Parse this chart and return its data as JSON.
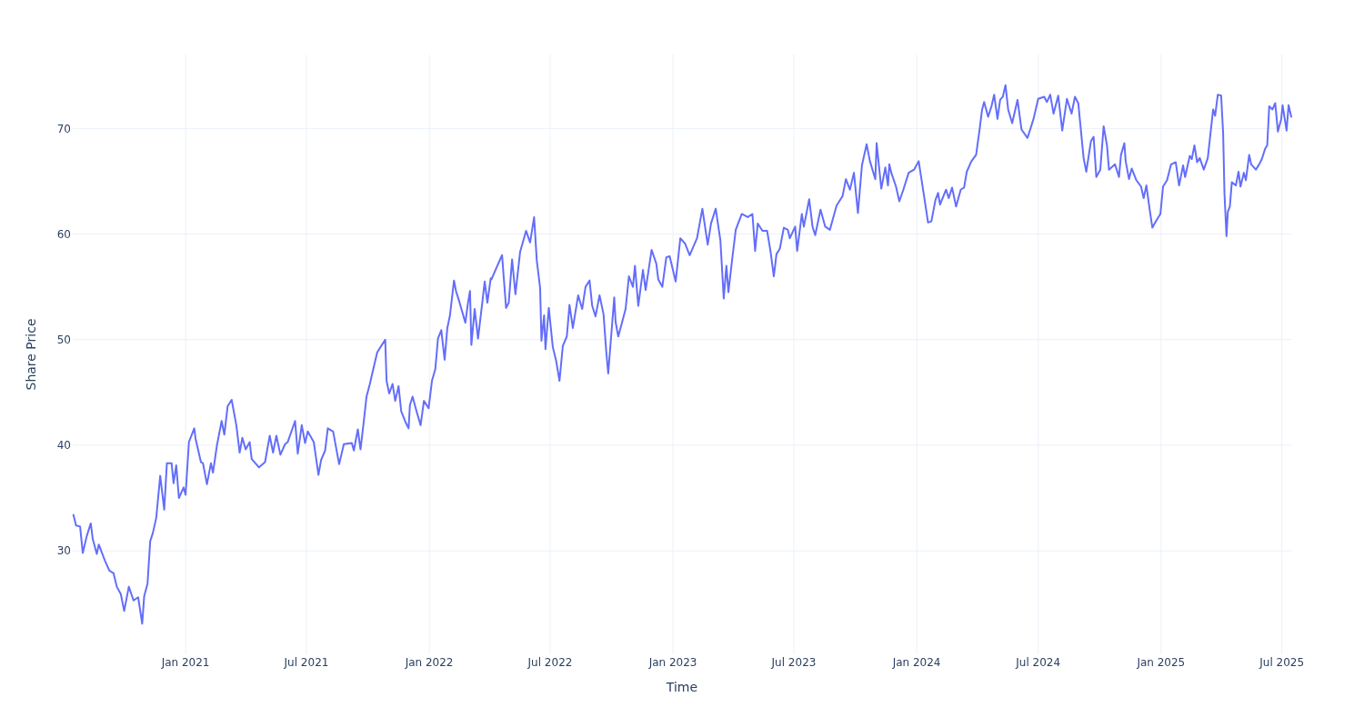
{
  "chart_data": {
    "type": "line",
    "xlabel": "Time",
    "ylabel": "Share Price",
    "grid": true,
    "xlim": [
      "2020-07-16",
      "2025-07-15"
    ],
    "ylim": [
      20.2,
      77
    ],
    "xticks": [
      {
        "value": "2021-01-01",
        "label": "Jan 2021"
      },
      {
        "value": "2021-07-01",
        "label": "Jul 2021"
      },
      {
        "value": "2022-01-01",
        "label": "Jan 2022"
      },
      {
        "value": "2022-07-01",
        "label": "Jul 2022"
      },
      {
        "value": "2023-01-01",
        "label": "Jan 2023"
      },
      {
        "value": "2023-07-01",
        "label": "Jul 2023"
      },
      {
        "value": "2024-01-01",
        "label": "Jan 2024"
      },
      {
        "value": "2024-07-01",
        "label": "Jul 2024"
      },
      {
        "value": "2025-01-01",
        "label": "Jan 2025"
      },
      {
        "value": "2025-07-01",
        "label": "Jul 2025"
      }
    ],
    "yticks": [
      30,
      40,
      50,
      60,
      70
    ],
    "x": [
      "2020-07-17",
      "2020-07-21",
      "2020-07-27",
      "2020-07-31",
      "2020-08-06",
      "2020-08-12",
      "2020-08-15",
      "2020-08-21",
      "2020-08-24",
      "2020-09-02",
      "2020-09-09",
      "2020-09-15",
      "2020-09-20",
      "2020-09-26",
      "2020-10-01",
      "2020-10-08",
      "2020-10-15",
      "2020-10-22",
      "2020-10-28",
      "2020-10-31",
      "2020-11-05",
      "2020-11-09",
      "2020-11-13",
      "2020-11-18",
      "2020-11-24",
      "2020-11-30",
      "2020-12-04",
      "2020-12-11",
      "2020-12-14",
      "2020-12-18",
      "2020-12-22",
      "2020-12-29",
      "2021-01-01",
      "2021-01-06",
      "2021-01-14",
      "2021-01-16",
      "2021-01-24",
      "2021-01-27",
      "2021-02-02",
      "2021-02-08",
      "2021-02-11",
      "2021-02-17",
      "2021-02-24",
      "2021-02-28",
      "2021-03-05",
      "2021-03-11",
      "2021-03-18",
      "2021-03-23",
      "2021-03-27",
      "2021-04-01",
      "2021-04-07",
      "2021-04-10",
      "2021-04-21",
      "2021-04-30",
      "2021-05-07",
      "2021-05-12",
      "2021-05-17",
      "2021-05-23",
      "2021-05-30",
      "2021-06-03",
      "2021-06-14",
      "2021-06-18",
      "2021-06-24",
      "2021-06-29",
      "2021-07-03",
      "2021-07-12",
      "2021-07-19",
      "2021-07-23",
      "2021-07-29",
      "2021-08-02",
      "2021-08-10",
      "2021-08-19",
      "2021-08-26",
      "2021-09-07",
      "2021-09-10",
      "2021-09-16",
      "2021-09-20",
      "2021-09-25",
      "2021-09-29",
      "2021-10-04",
      "2021-10-08",
      "2021-10-15",
      "2021-10-20",
      "2021-10-27",
      "2021-10-29",
      "2021-11-02",
      "2021-11-07",
      "2021-11-11",
      "2021-11-16",
      "2021-11-20",
      "2021-11-27",
      "2021-12-01",
      "2021-12-03",
      "2021-12-07",
      "2021-12-13",
      "2021-12-19",
      "2021-12-24",
      "2021-12-31",
      "2022-01-05",
      "2022-01-10",
      "2022-01-14",
      "2022-01-19",
      "2022-01-24",
      "2022-01-28",
      "2022-02-01",
      "2022-02-07",
      "2022-02-10",
      "2022-02-15",
      "2022-02-24",
      "2022-02-28",
      "2022-03-03",
      "2022-03-05",
      "2022-03-10",
      "2022-03-15",
      "2022-03-21",
      "2022-03-25",
      "2022-03-29",
      "2022-04-03",
      "2022-04-04",
      "2022-04-13",
      "2022-04-20",
      "2022-04-26",
      "2022-04-30",
      "2022-05-05",
      "2022-05-10",
      "2022-05-17",
      "2022-05-26",
      "2022-06-01",
      "2022-06-07",
      "2022-06-11",
      "2022-06-16",
      "2022-06-18",
      "2022-06-22",
      "2022-06-24",
      "2022-06-29",
      "2022-07-05",
      "2022-07-10",
      "2022-07-15",
      "2022-07-20",
      "2022-07-26",
      "2022-07-30",
      "2022-08-04",
      "2022-08-12",
      "2022-08-18",
      "2022-08-23",
      "2022-08-29",
      "2022-09-02",
      "2022-09-07",
      "2022-09-13",
      "2022-09-19",
      "2022-09-23",
      "2022-09-26",
      "2022-09-30",
      "2022-10-05",
      "2022-10-07",
      "2022-10-11",
      "2022-10-17",
      "2022-10-22",
      "2022-10-27",
      "2022-11-02",
      "2022-11-05",
      "2022-11-10",
      "2022-11-17",
      "2022-11-21",
      "2022-11-30",
      "2022-12-07",
      "2022-12-10",
      "2022-12-16",
      "2022-12-22",
      "2022-12-27",
      "2023-01-05",
      "2023-01-12",
      "2023-01-19",
      "2023-01-26",
      "2023-01-28",
      "2023-02-06",
      "2023-02-14",
      "2023-02-22",
      "2023-02-27",
      "2023-03-06",
      "2023-03-13",
      "2023-03-18",
      "2023-03-22",
      "2023-03-25",
      "2023-03-31",
      "2023-04-05",
      "2023-04-14",
      "2023-04-23",
      "2023-04-30",
      "2023-05-04",
      "2023-05-08",
      "2023-05-15",
      "2023-05-22",
      "2023-05-27",
      "2023-06-01",
      "2023-06-05",
      "2023-06-10",
      "2023-06-16",
      "2023-06-22",
      "2023-06-25",
      "2023-07-03",
      "2023-07-06",
      "2023-07-13",
      "2023-07-16",
      "2023-07-24",
      "2023-07-29",
      "2023-08-02",
      "2023-08-10",
      "2023-08-17",
      "2023-08-24",
      "2023-09-03",
      "2023-09-12",
      "2023-09-17",
      "2023-09-23",
      "2023-09-29",
      "2023-10-05",
      "2023-10-11",
      "2023-10-18",
      "2023-10-23",
      "2023-10-31",
      "2023-11-02",
      "2023-11-09",
      "2023-11-15",
      "2023-11-19",
      "2023-11-21",
      "2023-11-24",
      "2023-12-01",
      "2023-12-06",
      "2023-12-12",
      "2023-12-20",
      "2023-12-28",
      "2024-01-04",
      "2024-01-12",
      "2024-01-18",
      "2024-01-23",
      "2024-01-29",
      "2024-02-02",
      "2024-02-05",
      "2024-02-14",
      "2024-02-18",
      "2024-02-23",
      "2024-02-29",
      "2024-03-07",
      "2024-03-12",
      "2024-03-16",
      "2024-03-23",
      "2024-03-30",
      "2024-04-04",
      "2024-04-08",
      "2024-04-11",
      "2024-04-17",
      "2024-04-22",
      "2024-04-26",
      "2024-05-01",
      "2024-05-05",
      "2024-05-09",
      "2024-05-13",
      "2024-05-17",
      "2024-05-23",
      "2024-05-31",
      "2024-06-06",
      "2024-06-15",
      "2024-06-24",
      "2024-07-01",
      "2024-07-10",
      "2024-07-14",
      "2024-07-19",
      "2024-07-24",
      "2024-07-31",
      "2024-08-06",
      "2024-08-13",
      "2024-08-20",
      "2024-08-25",
      "2024-08-30",
      "2024-09-07",
      "2024-09-11",
      "2024-09-18",
      "2024-09-22",
      "2024-09-26",
      "2024-10-02",
      "2024-10-07",
      "2024-10-12",
      "2024-10-15",
      "2024-10-24",
      "2024-10-30",
      "2024-11-02",
      "2024-11-07",
      "2024-11-09",
      "2024-11-14",
      "2024-11-18",
      "2024-11-25",
      "2024-12-02",
      "2024-12-06",
      "2024-12-10",
      "2024-12-15",
      "2024-12-19",
      "2024-12-25",
      "2024-12-31",
      "2025-01-04",
      "2025-01-10",
      "2025-01-16",
      "2025-01-23",
      "2025-01-28",
      "2025-02-03",
      "2025-02-06",
      "2025-02-13",
      "2025-02-16",
      "2025-02-20",
      "2025-02-24",
      "2025-02-28",
      "2025-03-06",
      "2025-03-12",
      "2025-03-16",
      "2025-03-20",
      "2025-03-23",
      "2025-03-27",
      "2025-04-01",
      "2025-04-04",
      "2025-04-06",
      "2025-04-09",
      "2025-04-11",
      "2025-04-14",
      "2025-04-17",
      "2025-04-23",
      "2025-04-27",
      "2025-04-30",
      "2025-05-05",
      "2025-05-08",
      "2025-05-13",
      "2025-05-16",
      "2025-05-23",
      "2025-05-28",
      "2025-06-01",
      "2025-06-06",
      "2025-06-09",
      "2025-06-12",
      "2025-06-17",
      "2025-06-21",
      "2025-06-25",
      "2025-06-30",
      "2025-07-02",
      "2025-07-08",
      "2025-07-11",
      "2025-07-15"
    ],
    "series": [
      {
        "color": "#636efa",
        "values": [
          33.4,
          32.4,
          32.3,
          29.8,
          31.4,
          32.6,
          31.1,
          29.7,
          30.6,
          29.1,
          28.1,
          27.9,
          26.6,
          25.9,
          24.3,
          26.6,
          25.3,
          25.6,
          23.1,
          25.7,
          26.9,
          30.9,
          31.7,
          33.1,
          37.1,
          33.9,
          38.3,
          38.3,
          36.4,
          38.1,
          35.0,
          36.0,
          35.3,
          40.3,
          41.6,
          40.6,
          38.4,
          38.3,
          36.3,
          38.3,
          37.4,
          40.0,
          42.3,
          41.0,
          43.7,
          44.3,
          41.9,
          39.3,
          40.7,
          39.6,
          40.3,
          38.7,
          37.9,
          38.4,
          40.9,
          39.3,
          40.9,
          39.1,
          40.1,
          40.3,
          42.3,
          39.2,
          41.9,
          40.2,
          41.3,
          40.3,
          37.2,
          38.6,
          39.5,
          41.6,
          41.3,
          38.2,
          40.1,
          40.2,
          39.5,
          41.5,
          39.6,
          42.3,
          44.6,
          45.8,
          46.9,
          48.8,
          49.3,
          50.0,
          46.1,
          44.9,
          45.8,
          44.2,
          45.6,
          43.2,
          42.1,
          41.6,
          43.8,
          44.6,
          43.2,
          41.9,
          44.2,
          43.5,
          46.1,
          47.2,
          50.1,
          50.9,
          48.1,
          51.1,
          52.3,
          55.6,
          54.6,
          53.6,
          51.6,
          53.5,
          54.6,
          49.5,
          52.9,
          50.1,
          53.3,
          55.5,
          53.5,
          55.8,
          55.7,
          57.0,
          58.0,
          53.0,
          53.5,
          57.6,
          54.3,
          58.3,
          60.3,
          59.2,
          61.6,
          57.5,
          54.9,
          49.9,
          52.3,
          49.1,
          53.0,
          49.3,
          48.0,
          46.1,
          49.4,
          50.3,
          53.3,
          51.1,
          54.2,
          52.9,
          55.0,
          55.6,
          53.2,
          52.2,
          54.2,
          52.4,
          48.9,
          46.8,
          50.0,
          54.0,
          51.7,
          50.3,
          51.7,
          52.9,
          56.0,
          55.0,
          57.0,
          53.2,
          56.6,
          54.7,
          58.5,
          57.2,
          55.7,
          55.0,
          57.8,
          57.9,
          55.5,
          59.6,
          59.1,
          58.0,
          58.3,
          59.6,
          62.4,
          59.0,
          61.0,
          62.4,
          59.4,
          53.9,
          57.0,
          54.5,
          57.8,
          60.4,
          61.9,
          61.6,
          61.9,
          58.4,
          61.0,
          60.3,
          60.3,
          58.4,
          56.0,
          58.1,
          58.6,
          60.6,
          60.4,
          59.6,
          60.7,
          58.4,
          61.9,
          60.7,
          63.3,
          60.7,
          59.9,
          62.3,
          60.7,
          60.4,
          62.7,
          63.6,
          65.2,
          64.2,
          65.8,
          62.0,
          66.5,
          68.5,
          66.9,
          65.2,
          68.6,
          64.3,
          66.3,
          64.6,
          66.6,
          65.8,
          64.5,
          63.1,
          64.2,
          65.8,
          66.1,
          66.9,
          63.6,
          61.1,
          61.2,
          63.2,
          63.9,
          62.8,
          64.2,
          63.4,
          64.4,
          62.6,
          64.2,
          64.4,
          65.9,
          66.9,
          67.5,
          69.8,
          71.8,
          72.5,
          71.1,
          72.1,
          73.2,
          70.9,
          72.7,
          73.0,
          74.1,
          71.8,
          70.5,
          72.7,
          69.9,
          69.1,
          70.9,
          72.8,
          73.0,
          72.5,
          73.2,
          71.4,
          73.1,
          69.8,
          72.8,
          71.4,
          73.0,
          72.4,
          67.2,
          65.9,
          68.8,
          69.2,
          65.4,
          66.1,
          70.2,
          68.4,
          66.1,
          66.6,
          65.4,
          67.5,
          68.6,
          66.9,
          65.2,
          66.2,
          65.1,
          64.5,
          63.4,
          64.6,
          62.3,
          60.6,
          61.3,
          61.9,
          64.5,
          65.1,
          66.6,
          66.8,
          64.6,
          66.5,
          65.4,
          67.4,
          67.1,
          68.4,
          66.8,
          67.2,
          66.1,
          67.2,
          69.5,
          71.8,
          71.2,
          73.2,
          73.1,
          69.5,
          63.8,
          59.8,
          62.1,
          62.6,
          64.9,
          64.6,
          65.9,
          64.5,
          65.8,
          65.1,
          67.5,
          66.6,
          66.1,
          66.6,
          67.1,
          68.1,
          68.4,
          72.1,
          71.8,
          72.4,
          69.7,
          70.9,
          72.2,
          69.8,
          72.2,
          71.1
        ]
      }
    ]
  }
}
